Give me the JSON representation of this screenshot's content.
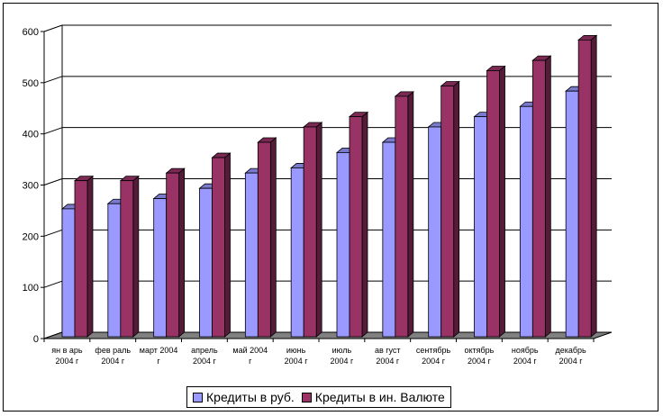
{
  "chart_data": {
    "type": "bar",
    "categories": [
      [
        "ян в арь",
        "2004 г"
      ],
      [
        "фев раль",
        "2004 г"
      ],
      [
        "март 2004",
        "г"
      ],
      [
        "апрель",
        "2004 г"
      ],
      [
        "май 2004",
        "г"
      ],
      [
        "июнь",
        "2004 г"
      ],
      [
        "июль",
        "2004 г"
      ],
      [
        "ав густ",
        "2004 г"
      ],
      [
        "сентябрь",
        "2004 г"
      ],
      [
        "октябрь",
        "2004 г"
      ],
      [
        "ноябрь",
        "2004 г"
      ],
      [
        "декабрь",
        "2004 г"
      ]
    ],
    "series": [
      {
        "name": "Кредиты в руб.",
        "color": "#9999ff",
        "values": [
          250,
          260,
          270,
          290,
          320,
          330,
          360,
          380,
          410,
          430,
          450,
          480
        ]
      },
      {
        "name": "Кредиты в ин. Валюте",
        "color": "#993366",
        "values": [
          305,
          305,
          320,
          350,
          380,
          410,
          430,
          470,
          490,
          520,
          540,
          580
        ]
      }
    ],
    "yticks": [
      0,
      100,
      200,
      300,
      400,
      500,
      600
    ],
    "ylim": [
      0,
      600
    ],
    "grid": true,
    "style": "3d-clustered-bar",
    "legend_position": "bottom"
  }
}
